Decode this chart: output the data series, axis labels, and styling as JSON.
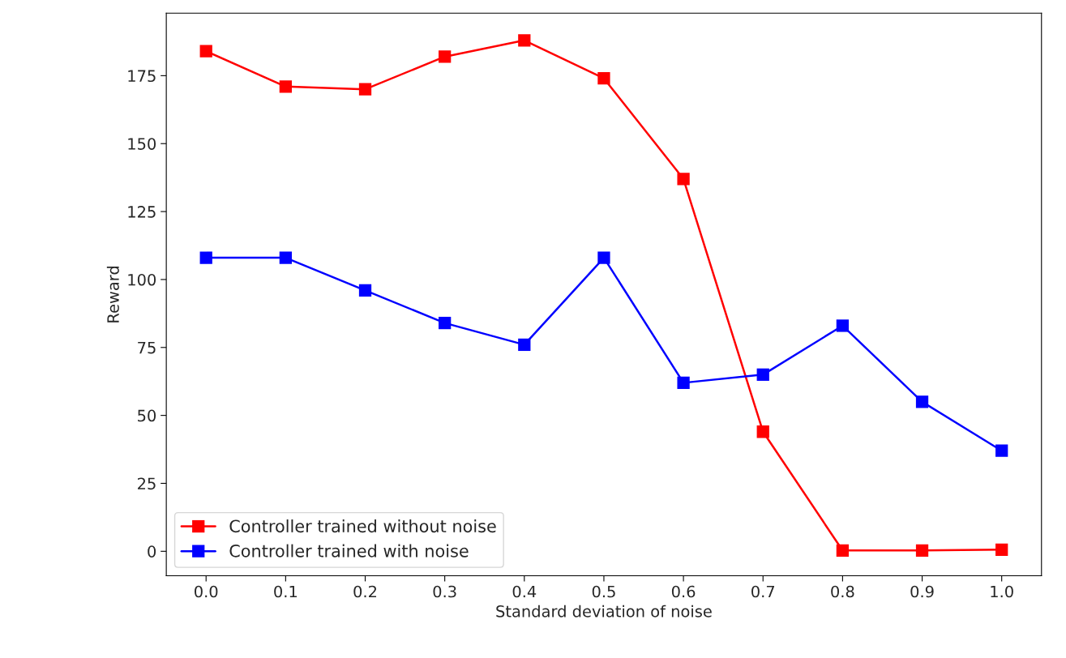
{
  "chart_data": {
    "type": "line",
    "xlabel": "Standard deviation of noise",
    "ylabel": "Reward",
    "x": [
      0.0,
      0.1,
      0.2,
      0.3,
      0.4,
      0.5,
      0.6,
      0.7,
      0.8,
      0.9,
      1.0
    ],
    "series": [
      {
        "name": "Controller trained without noise",
        "color": "#ff0000",
        "values": [
          184,
          171,
          170,
          182,
          188,
          174,
          137,
          44,
          0.3,
          0.3,
          0.6
        ]
      },
      {
        "name": "Controller trained with noise",
        "color": "#0000ff",
        "values": [
          108,
          108,
          96,
          84,
          76,
          108,
          62,
          65,
          83,
          55,
          37
        ]
      }
    ],
    "xlim": [
      -0.05,
      1.05
    ],
    "xticks": [
      {
        "value": 0.0,
        "label": "0.0"
      },
      {
        "value": 0.1,
        "label": "0.1"
      },
      {
        "value": 0.2,
        "label": "0.2"
      },
      {
        "value": 0.3,
        "label": "0.3"
      },
      {
        "value": 0.4,
        "label": "0.4"
      },
      {
        "value": 0.5,
        "label": "0.5"
      },
      {
        "value": 0.6,
        "label": "0.6"
      },
      {
        "value": 0.7,
        "label": "0.7"
      },
      {
        "value": 0.8,
        "label": "0.8"
      },
      {
        "value": 0.9,
        "label": "0.9"
      },
      {
        "value": 1.0,
        "label": "1.0"
      }
    ],
    "ylim": [
      -9,
      198
    ],
    "yticks": [
      0,
      25,
      50,
      75,
      100,
      125,
      150,
      175
    ],
    "marker": "square",
    "line_style": "solid",
    "grid": false,
    "legend": "bottom left"
  }
}
